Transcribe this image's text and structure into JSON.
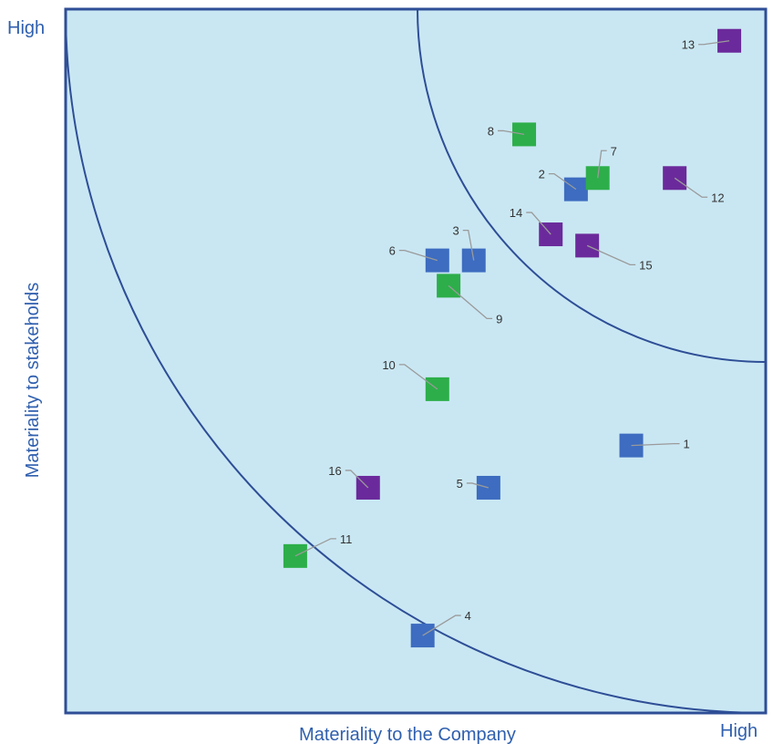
{
  "chart_data": {
    "type": "scatter",
    "title": "",
    "xlabel": "Materiality to the Company",
    "ylabel": "Materiality to stakeholds",
    "x_high_label": "High",
    "y_high_label": "High",
    "xlim": [
      0,
      100
    ],
    "ylim": [
      0,
      100
    ],
    "grid": false,
    "background_color": "#c9e7f3",
    "frame_color": "#2e4e96",
    "category_colors": {
      "blue": "#3d6cc0",
      "green": "#2dae4a",
      "purple": "#6b2a9b"
    },
    "points": [
      {
        "label": "1",
        "x": 80.8,
        "y": 38.0,
        "category": "blue"
      },
      {
        "label": "2",
        "x": 72.9,
        "y": 74.4,
        "category": "blue"
      },
      {
        "label": "3",
        "x": 58.3,
        "y": 64.3,
        "category": "blue"
      },
      {
        "label": "4",
        "x": 51.0,
        "y": 11.0,
        "category": "blue"
      },
      {
        "label": "5",
        "x": 60.4,
        "y": 32.0,
        "category": "blue"
      },
      {
        "label": "6",
        "x": 53.1,
        "y": 64.3,
        "category": "blue"
      },
      {
        "label": "7",
        "x": 76.0,
        "y": 76.0,
        "category": "green"
      },
      {
        "label": "8",
        "x": 65.5,
        "y": 82.2,
        "category": "green"
      },
      {
        "label": "9",
        "x": 54.7,
        "y": 60.7,
        "category": "green"
      },
      {
        "label": "10",
        "x": 53.1,
        "y": 46.0,
        "category": "green"
      },
      {
        "label": "11",
        "x": 32.8,
        "y": 22.3,
        "category": "green"
      },
      {
        "label": "12",
        "x": 87.0,
        "y": 76.0,
        "category": "purple"
      },
      {
        "label": "13",
        "x": 94.8,
        "y": 95.5,
        "category": "purple"
      },
      {
        "label": "14",
        "x": 69.3,
        "y": 68.0,
        "category": "purple"
      },
      {
        "label": "15",
        "x": 74.5,
        "y": 66.4,
        "category": "purple"
      },
      {
        "label": "16",
        "x": 43.2,
        "y": 32.0,
        "category": "purple"
      }
    ]
  }
}
